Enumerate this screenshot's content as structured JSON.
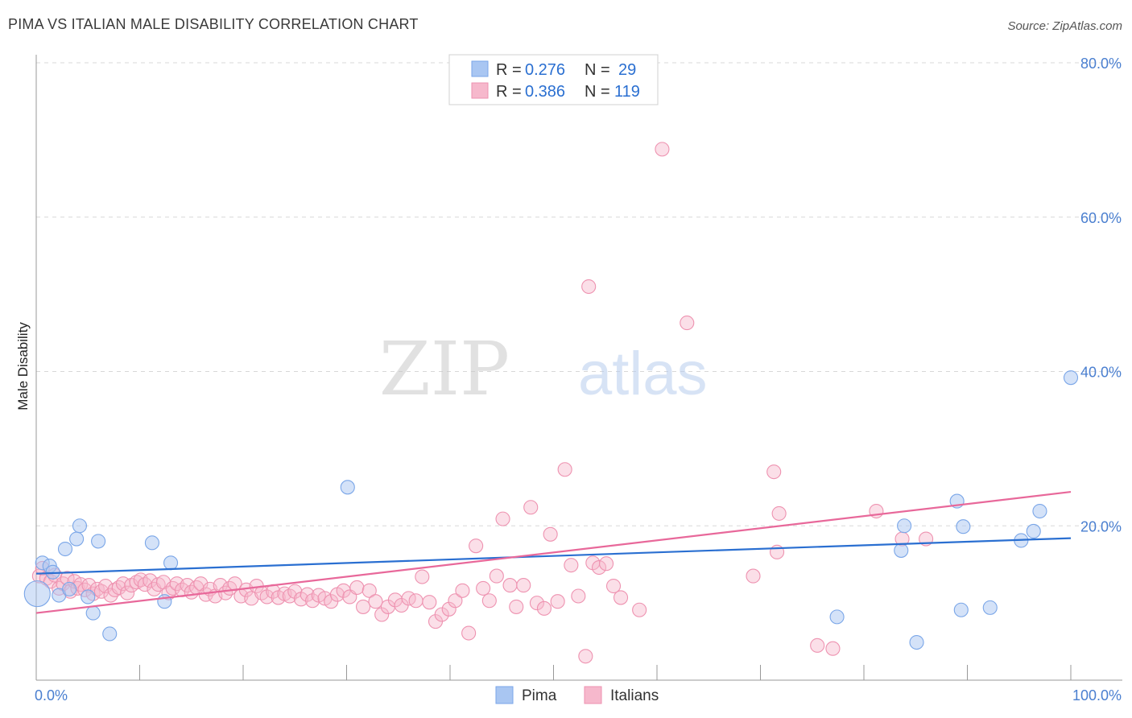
{
  "header": {
    "title": "PIMA VS ITALIAN MALE DISABILITY CORRELATION CHART",
    "source": "Source: ZipAtlas.com"
  },
  "watermark": {
    "zip": "ZIP",
    "atlas": "atlas"
  },
  "colors": {
    "pima_fill": "#a9c6f2",
    "pima_stroke": "#7aa6e8",
    "pima_line": "#2a6fd1",
    "italians_fill": "#f6b8cc",
    "italians_stroke": "#ee92b0",
    "italians_line": "#e8689a",
    "axis_label": "#4a7fd0",
    "grid": "#d8d8d8"
  },
  "legend": {
    "rows": [
      {
        "r_label": "R = ",
        "r_value": "0.276",
        "n_label": "N = ",
        "n_value": "29"
      },
      {
        "r_label": "R = ",
        "r_value": "0.386",
        "n_label": "N = ",
        "n_value": "119"
      }
    ]
  },
  "bottom_legend": {
    "items": [
      "Pima",
      "Italians"
    ]
  },
  "chart_data": {
    "type": "scatter",
    "title": "PIMA VS ITALIAN MALE DISABILITY CORRELATION CHART",
    "xlabel": "",
    "ylabel": "Male Disability",
    "xlim": [
      0,
      100
    ],
    "ylim": [
      0,
      80
    ],
    "x_tick_labels": [
      "0.0%",
      "100.0%"
    ],
    "y_tick_labels": [
      "20.0%",
      "40.0%",
      "60.0%",
      "80.0%"
    ],
    "y_ticks": [
      20,
      40,
      60,
      80
    ],
    "grid": "horizontal-dashed",
    "legend_position": "top-center",
    "series": [
      {
        "name": "Pima",
        "R": 0.276,
        "N": 29,
        "trend": {
          "x": [
            0,
            100
          ],
          "y": [
            13.8,
            18.4
          ]
        },
        "points": [
          [
            0.1,
            11.2
          ],
          [
            0.6,
            15.2
          ],
          [
            1.3,
            14.8
          ],
          [
            1.6,
            14.0
          ],
          [
            2.2,
            11.0
          ],
          [
            2.8,
            17.0
          ],
          [
            3.2,
            11.8
          ],
          [
            3.9,
            18.3
          ],
          [
            4.2,
            20.0
          ],
          [
            5.0,
            10.8
          ],
          [
            5.5,
            8.7
          ],
          [
            6.0,
            18.0
          ],
          [
            7.1,
            6.0
          ],
          [
            11.2,
            17.8
          ],
          [
            12.4,
            10.2
          ],
          [
            13.0,
            15.2
          ],
          [
            30.1,
            25.0
          ],
          [
            77.4,
            8.2
          ],
          [
            83.6,
            16.8
          ],
          [
            83.9,
            20.0
          ],
          [
            85.1,
            4.9
          ],
          [
            89.4,
            9.1
          ],
          [
            89.6,
            19.9
          ],
          [
            100.0,
            39.2
          ],
          [
            89.0,
            23.2
          ],
          [
            92.2,
            9.4
          ],
          [
            97.0,
            21.9
          ],
          [
            95.2,
            18.1
          ],
          [
            96.4,
            19.3
          ]
        ]
      },
      {
        "name": "Italians",
        "R": 0.386,
        "N": 119,
        "trend": {
          "x": [
            0,
            100
          ],
          "y": [
            8.7,
            24.4
          ]
        },
        "points": [
          [
            0.3,
            13.5
          ],
          [
            0.6,
            14.5
          ],
          [
            1.0,
            13.2
          ],
          [
            1.4,
            12.8
          ],
          [
            1.8,
            13.6
          ],
          [
            2.2,
            11.9
          ],
          [
            2.6,
            12.5
          ],
          [
            3.0,
            13.2
          ],
          [
            3.3,
            11.5
          ],
          [
            3.7,
            12.8
          ],
          [
            4.0,
            11.9
          ],
          [
            4.3,
            12.4
          ],
          [
            4.7,
            11.7
          ],
          [
            5.1,
            12.3
          ],
          [
            5.5,
            11.2
          ],
          [
            5.9,
            11.8
          ],
          [
            6.3,
            11.5
          ],
          [
            6.7,
            12.2
          ],
          [
            7.2,
            11.0
          ],
          [
            7.6,
            11.7
          ],
          [
            8.0,
            12.0
          ],
          [
            8.4,
            12.5
          ],
          [
            8.8,
            11.3
          ],
          [
            9.2,
            12.3
          ],
          [
            9.7,
            12.7
          ],
          [
            10.1,
            13.0
          ],
          [
            10.5,
            12.4
          ],
          [
            11.0,
            12.9
          ],
          [
            11.4,
            11.8
          ],
          [
            11.8,
            12.4
          ],
          [
            12.3,
            12.7
          ],
          [
            12.8,
            11.3
          ],
          [
            13.2,
            11.9
          ],
          [
            13.6,
            12.5
          ],
          [
            14.1,
            11.7
          ],
          [
            14.6,
            12.3
          ],
          [
            15.0,
            11.4
          ],
          [
            15.5,
            12.0
          ],
          [
            15.9,
            12.5
          ],
          [
            16.4,
            11.1
          ],
          [
            16.8,
            11.8
          ],
          [
            17.3,
            10.9
          ],
          [
            17.8,
            12.3
          ],
          [
            18.3,
            11.3
          ],
          [
            18.7,
            11.9
          ],
          [
            19.2,
            12.5
          ],
          [
            19.8,
            10.9
          ],
          [
            20.3,
            11.7
          ],
          [
            20.8,
            10.6
          ],
          [
            21.3,
            12.2
          ],
          [
            21.8,
            11.3
          ],
          [
            22.3,
            10.8
          ],
          [
            22.9,
            11.5
          ],
          [
            23.4,
            10.7
          ],
          [
            24.0,
            11.2
          ],
          [
            24.5,
            10.9
          ],
          [
            25.0,
            11.5
          ],
          [
            25.6,
            10.5
          ],
          [
            26.2,
            11.1
          ],
          [
            26.7,
            10.3
          ],
          [
            27.3,
            11.0
          ],
          [
            27.9,
            10.6
          ],
          [
            28.5,
            10.2
          ],
          [
            29.1,
            11.1
          ],
          [
            29.7,
            11.6
          ],
          [
            30.3,
            10.8
          ],
          [
            31.0,
            12.0
          ],
          [
            31.6,
            9.5
          ],
          [
            32.2,
            11.6
          ],
          [
            32.8,
            10.2
          ],
          [
            33.4,
            8.5
          ],
          [
            34.0,
            9.5
          ],
          [
            34.7,
            10.4
          ],
          [
            35.3,
            9.7
          ],
          [
            36.0,
            10.6
          ],
          [
            36.7,
            10.3
          ],
          [
            37.3,
            13.4
          ],
          [
            38.0,
            10.1
          ],
          [
            38.6,
            7.6
          ],
          [
            39.2,
            8.5
          ],
          [
            39.9,
            9.2
          ],
          [
            40.5,
            10.3
          ],
          [
            41.2,
            11.6
          ],
          [
            41.8,
            6.1
          ],
          [
            42.5,
            17.4
          ],
          [
            43.2,
            11.9
          ],
          [
            43.8,
            10.3
          ],
          [
            44.5,
            13.5
          ],
          [
            45.1,
            20.9
          ],
          [
            45.8,
            12.3
          ],
          [
            46.4,
            9.5
          ],
          [
            47.1,
            12.3
          ],
          [
            47.8,
            22.4
          ],
          [
            48.4,
            10.0
          ],
          [
            49.1,
            9.3
          ],
          [
            49.7,
            18.9
          ],
          [
            50.4,
            10.2
          ],
          [
            51.1,
            27.3
          ],
          [
            51.7,
            14.9
          ],
          [
            52.4,
            10.9
          ],
          [
            53.1,
            3.1
          ],
          [
            53.8,
            15.2
          ],
          [
            54.4,
            14.6
          ],
          [
            55.1,
            15.1
          ],
          [
            55.8,
            12.2
          ],
          [
            56.5,
            10.7
          ],
          [
            58.3,
            9.1
          ],
          [
            60.5,
            68.8
          ],
          [
            62.9,
            46.3
          ],
          [
            53.4,
            51.0
          ],
          [
            69.3,
            13.5
          ],
          [
            71.3,
            27.0
          ],
          [
            71.6,
            16.6
          ],
          [
            71.8,
            21.6
          ],
          [
            75.5,
            4.5
          ],
          [
            77.0,
            4.1
          ],
          [
            81.2,
            21.9
          ],
          [
            83.7,
            18.3
          ],
          [
            86.0,
            18.3
          ]
        ]
      }
    ]
  }
}
